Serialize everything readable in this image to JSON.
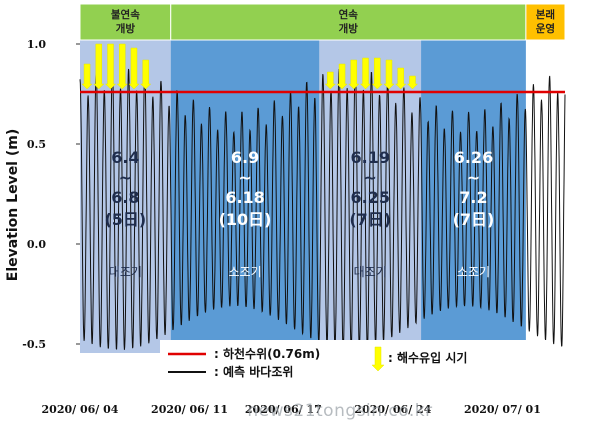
{
  "chart_data": {
    "type": "line",
    "ylabel": "Elevation Level (m)",
    "ylim": [
      -0.5,
      1.0
    ],
    "yticks": [
      {
        "value": 1.0,
        "label": "1.0"
      },
      {
        "value": 0.5,
        "label": "0.5"
      },
      {
        "value": 0.0,
        "label": "0.0"
      },
      {
        "value": -0.5,
        "label": "-0.5"
      }
    ],
    "xlim_days": [
      0,
      31
    ],
    "xticks": [
      {
        "day": 0,
        "label": "2020/ 06/ 04"
      },
      {
        "day": 7,
        "label": "2020/ 06/ 11"
      },
      {
        "day": 13,
        "label": "2020/ 06/ 17"
      },
      {
        "day": 20,
        "label": "2020/ 06/ 24"
      },
      {
        "day": 27,
        "label": "2020/ 07/ 01"
      }
    ],
    "phases": [
      {
        "label": "불연속\n개방",
        "start": 0,
        "end": 5.8,
        "color": "#92d050"
      },
      {
        "label": "연속\n개방",
        "start": 5.8,
        "end": 28.5,
        "color": "#92d050"
      },
      {
        "label": "본래\n운영",
        "start": 28.5,
        "end": 31,
        "color": "#ffc000"
      }
    ],
    "periods": [
      {
        "range": "6.4\n~\n6.8",
        "days": "(5日)",
        "tide": "대조기",
        "start": 0,
        "end": 5.8,
        "color": "#b4c7e7",
        "text_color": "#1f2d4d"
      },
      {
        "range": "6.9\n~\n6.18",
        "days": "(10日)",
        "tide": "소조기",
        "start": 5.8,
        "end": 15.3,
        "color": "#5b9bd5",
        "text_color": "#ffffff"
      },
      {
        "range": "6.19\n~\n6.25",
        "days": "(7日)",
        "tide": "대조기",
        "start": 15.3,
        "end": 21.8,
        "color": "#b4c7e7",
        "text_color": "#1f2d4d"
      },
      {
        "range": "6.26\n~\n7.2",
        "days": "(7日)",
        "tide": "소조기",
        "start": 21.8,
        "end": 28.5,
        "color": "#5b9bd5",
        "text_color": "#ffffff"
      }
    ],
    "series": [
      {
        "name": "하천수위(0.76m)",
        "type": "constant",
        "value": 0.76,
        "color": "#e00000"
      },
      {
        "name": "예측 바다조위",
        "type": "line",
        "color": "#111111"
      }
    ],
    "tide_model": {
      "mean": 0.15,
      "spring_amplitude": 0.68,
      "neap_amplitude": 0.46,
      "period_days": 0.5175
    },
    "inflow_marker": {
      "name": "해수유입 시기",
      "color": "#ffff00"
    },
    "inflow_events": [
      {
        "day": 0.45,
        "top": 0.9
      },
      {
        "day": 1.2,
        "top": 1.0
      },
      {
        "day": 1.95,
        "top": 1.0
      },
      {
        "day": 2.7,
        "top": 1.0
      },
      {
        "day": 3.45,
        "top": 0.98
      },
      {
        "day": 4.2,
        "top": 0.92
      },
      {
        "day": 16.0,
        "top": 0.86
      },
      {
        "day": 16.75,
        "top": 0.9
      },
      {
        "day": 17.5,
        "top": 0.92
      },
      {
        "day": 18.25,
        "top": 0.93
      },
      {
        "day": 19.0,
        "top": 0.93
      },
      {
        "day": 19.75,
        "top": 0.92
      },
      {
        "day": 20.5,
        "top": 0.88
      },
      {
        "day": 21.25,
        "top": 0.84
      }
    ],
    "legend": [
      {
        "label": "하천수위(0.76m)",
        "kind": "line",
        "color": "#e00000"
      },
      {
        "label": "예측 바다조위",
        "kind": "line",
        "color": "#111111"
      },
      {
        "label": "해수유입 시기",
        "kind": "arrow",
        "color": "#ffff00"
      }
    ]
  },
  "watermark": "news21tongsin.co.kr"
}
